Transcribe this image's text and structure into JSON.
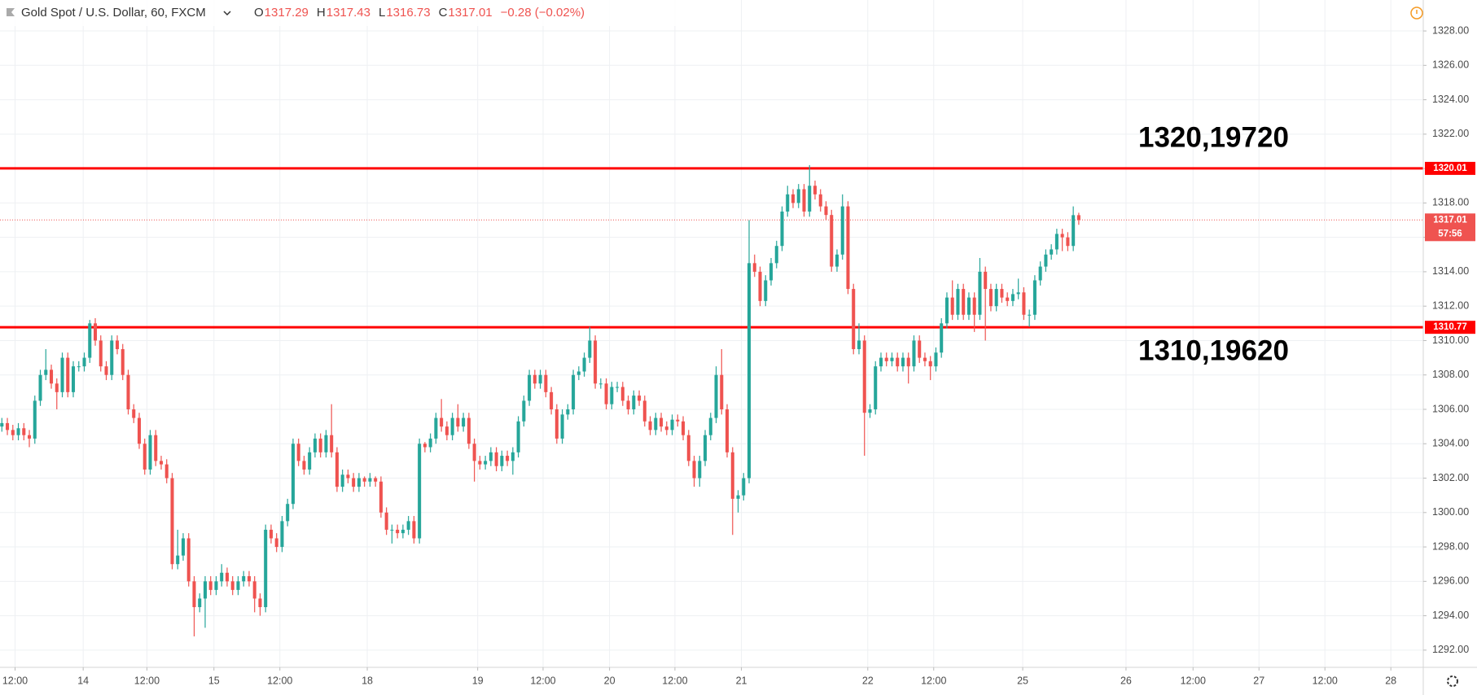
{
  "header": {
    "symbol": "Gold Spot / U.S. Dollar, 60, FXCM",
    "ohlc": [
      {
        "key": "O",
        "value": "1317.29"
      },
      {
        "key": "H",
        "value": "1317.43"
      },
      {
        "key": "L",
        "value": "1316.73"
      },
      {
        "key": "C",
        "value": "1317.01"
      }
    ],
    "change": "−0.28 (−0.02%)"
  },
  "chart_data": {
    "type": "candlestick",
    "up_color": "#26a69a",
    "down_color": "#ef5350",
    "grid": true,
    "x": [
      0,
      1,
      2,
      3,
      4,
      5,
      6,
      7,
      8,
      9,
      10,
      11,
      12,
      13,
      14,
      15,
      16,
      17,
      18,
      19,
      20,
      21,
      22,
      23,
      24,
      25,
      26,
      27,
      28,
      29,
      30,
      31,
      32,
      33,
      34,
      35,
      36,
      37,
      38,
      39,
      40,
      41,
      42,
      43,
      44,
      45,
      46,
      47,
      48,
      49,
      50,
      51,
      52,
      53,
      54,
      55,
      56,
      57,
      58,
      59,
      60,
      61,
      62,
      63,
      64,
      65,
      66,
      67,
      68,
      69,
      70,
      71,
      72,
      73,
      74,
      75,
      76,
      77,
      78,
      79,
      80,
      81,
      82,
      83,
      84,
      85,
      86,
      87,
      88,
      89,
      90,
      91,
      92,
      93,
      94,
      95,
      96,
      97,
      98,
      99,
      100,
      101,
      102,
      103,
      104,
      105,
      106,
      107,
      108,
      109,
      110,
      111,
      112,
      113,
      114,
      115,
      116,
      117,
      118,
      119,
      120,
      121,
      122,
      123,
      124,
      125,
      126,
      127,
      128,
      129,
      130,
      131,
      132,
      133,
      134,
      135,
      136,
      137,
      138,
      139,
      140,
      141,
      142,
      143,
      144,
      145,
      146,
      147,
      148,
      149,
      150,
      151,
      152,
      153,
      154,
      155,
      156,
      157,
      158,
      159,
      160,
      161,
      162,
      163,
      164,
      165,
      166,
      167,
      168,
      169,
      170,
      171,
      172,
      173,
      174,
      175,
      176,
      177,
      178,
      179,
      180,
      181,
      182,
      183,
      184,
      185,
      186,
      187,
      188,
      189,
      190,
      191,
      192,
      193,
      194,
      195,
      196
    ],
    "open": [
      1305,
      1305.2,
      1304.8,
      1304.5,
      1304.9,
      1304.5,
      1304.3,
      1306.5,
      1308,
      1308.3,
      1307.5,
      1307,
      1309,
      1307,
      1308.5,
      1308.5,
      1309,
      1311,
      1310,
      1308.5,
      1308,
      1310,
      1309.5,
      1308,
      1306,
      1305.5,
      1304,
      1302.5,
      1304.5,
      1303,
      1302.8,
      1302,
      1297,
      1297.5,
      1298.5,
      1296,
      1294.5,
      1295,
      1296,
      1295.5,
      1296,
      1296.5,
      1296,
      1295.5,
      1296,
      1296.3,
      1296,
      1295,
      1294.5,
      1299,
      1298.5,
      1298,
      1299.5,
      1300.5,
      1304,
      1303,
      1302.5,
      1303.5,
      1304.3,
      1303.5,
      1304.5,
      1303.5,
      1301.5,
      1302.2,
      1302,
      1301.5,
      1302,
      1301.8,
      1302,
      1301.8,
      1300,
      1299,
      1299,
      1298.8,
      1299,
      1299.5,
      1298.5,
      1304,
      1303.8,
      1304.3,
      1305.5,
      1305,
      1304.5,
      1305.5,
      1305,
      1305.5,
      1304,
      1303,
      1302.8,
      1303,
      1303.5,
      1302.7,
      1303.3,
      1303,
      1303.5,
      1305.3,
      1306.5,
      1308,
      1307.5,
      1308,
      1307,
      1306,
      1304.3,
      1305.7,
      1306,
      1308,
      1308.2,
      1309,
      1310,
      1307.5,
      1307.5,
      1306.3,
      1307.3,
      1307.3,
      1306.5,
      1306,
      1306.8,
      1306.5,
      1305.3,
      1304.8,
      1305.5,
      1305,
      1304.8,
      1305.4,
      1305.3,
      1304.5,
      1303,
      1302,
      1303,
      1304.5,
      1305.5,
      1308,
      1306,
      1303.5,
      1300.8,
      1301,
      1302,
      1314.5,
      1314,
      1312.3,
      1313.5,
      1314.5,
      1315.5,
      1317.5,
      1318.5,
      1318,
      1318.8,
      1317.5,
      1319,
      1318.5,
      1317.8,
      1317.3,
      1314.3,
      1315,
      1317.8,
      1313,
      1309.5,
      1310,
      1305.8,
      1306,
      1308.5,
      1309,
      1308.8,
      1309,
      1308.5,
      1309,
      1308.5,
      1310,
      1309,
      1308.8,
      1308.5,
      1309.3,
      1311,
      1312.5,
      1311.5,
      1313,
      1311.5,
      1312.5,
      1311.5,
      1314,
      1313,
      1312,
      1313,
      1312.5,
      1312.3,
      1312.7,
      1312.8,
      1311.5,
      1311.5,
      1313.5,
      1314.3,
      1315,
      1315.3,
      1316.2,
      1316,
      1315.5,
      1317.29
    ],
    "high": [
      1305.5,
      1305.5,
      1305.1,
      1305.2,
      1305.2,
      1304.8,
      1306.8,
      1308.3,
      1309.5,
      1308.6,
      1307.8,
      1309.3,
      1309.3,
      1308.8,
      1308.8,
      1309.3,
      1311.2,
      1311.3,
      1310.3,
      1308.8,
      1310.3,
      1310.3,
      1309.8,
      1308.3,
      1306.3,
      1305.8,
      1304.3,
      1304.8,
      1304.8,
      1303.3,
      1303.1,
      1302.3,
      1299,
      1298.8,
      1298.8,
      1296.3,
      1295.3,
      1296.3,
      1296.3,
      1296.3,
      1297,
      1296.8,
      1296.3,
      1296.3,
      1296.6,
      1296.6,
      1296.3,
      1295.3,
      1299.3,
      1299.3,
      1298.8,
      1299.8,
      1300.8,
      1304.3,
      1304.3,
      1303.3,
      1303.8,
      1304.6,
      1304.6,
      1304.8,
      1306.3,
      1303.8,
      1302.5,
      1302.5,
      1302.3,
      1302.3,
      1302.1,
      1302.3,
      1302.1,
      1302.1,
      1300.3,
      1299.3,
      1299.3,
      1299.3,
      1299.8,
      1299.8,
      1304.3,
      1304.1,
      1304.6,
      1305.8,
      1306.6,
      1305.3,
      1305.8,
      1306.3,
      1305.8,
      1305.8,
      1304.3,
      1303.3,
      1303.3,
      1303.8,
      1303.8,
      1303.6,
      1303.6,
      1303.8,
      1305.6,
      1306.8,
      1308.3,
      1308.3,
      1308.3,
      1308.3,
      1307.3,
      1306.3,
      1306,
      1306.3,
      1308.3,
      1308.5,
      1309.3,
      1310.8,
      1310.3,
      1307.8,
      1307.8,
      1307.6,
      1307.6,
      1307.6,
      1306.8,
      1307.1,
      1307.1,
      1306.8,
      1305.6,
      1305.8,
      1305.8,
      1305.3,
      1305.7,
      1305.7,
      1305.6,
      1304.8,
      1303.3,
      1303.3,
      1304.8,
      1305.8,
      1308.5,
      1309.5,
      1306.3,
      1303.8,
      1301.3,
      1302.3,
      1317,
      1315,
      1314.3,
      1313.8,
      1314.8,
      1315.8,
      1317.8,
      1319,
      1318.8,
      1319.1,
      1319.1,
      1320.2,
      1319.3,
      1318.8,
      1318.1,
      1317.6,
      1315.3,
      1318.5,
      1318.1,
      1313.3,
      1311,
      1310.3,
      1306.3,
      1308.8,
      1309.3,
      1309.3,
      1309.3,
      1309.3,
      1309.3,
      1309.3,
      1310.3,
      1310.3,
      1309.3,
      1309.1,
      1309.6,
      1311.3,
      1312.8,
      1313.5,
      1313.3,
      1313.3,
      1312.8,
      1312.8,
      1314.8,
      1314.3,
      1313.3,
      1313.3,
      1313.3,
      1312.8,
      1313,
      1313.6,
      1313.1,
      1311.8,
      1313.8,
      1314.6,
      1315.3,
      1315.6,
      1316.5,
      1316.5,
      1316.3,
      1317.8,
      1317.43
    ],
    "low": [
      1304.7,
      1304.5,
      1304.2,
      1304.2,
      1304.2,
      1303.8,
      1304,
      1306.2,
      1307.7,
      1307.2,
      1306,
      1306.7,
      1306.7,
      1306.7,
      1308.2,
      1308.2,
      1308.7,
      1309.7,
      1308.2,
      1307.7,
      1307.7,
      1309.2,
      1307.7,
      1305.7,
      1305.2,
      1303.7,
      1302.2,
      1302.2,
      1302.7,
      1302.5,
      1301.7,
      1296.7,
      1296.7,
      1297.2,
      1295.7,
      1292.8,
      1294.2,
      1293.3,
      1295.2,
      1295.2,
      1295.7,
      1295.7,
      1295.2,
      1295.2,
      1295.7,
      1295.7,
      1294.2,
      1294,
      1294.2,
      1298.2,
      1297.7,
      1297.7,
      1299.2,
      1300.2,
      1302.7,
      1302.2,
      1302.2,
      1303.2,
      1303.2,
      1303.2,
      1303.2,
      1301.2,
      1301.2,
      1301.7,
      1301.2,
      1301.2,
      1301.5,
      1301.5,
      1301.5,
      1299.7,
      1298.7,
      1298.2,
      1298.5,
      1298.5,
      1298.7,
      1298.2,
      1298.2,
      1303.5,
      1303.5,
      1304,
      1304.7,
      1304.2,
      1304.2,
      1304.7,
      1304.7,
      1303.7,
      1301.8,
      1302.5,
      1302.5,
      1302.7,
      1302.4,
      1302.4,
      1302.7,
      1302.2,
      1303.2,
      1305,
      1306.2,
      1307.2,
      1307.2,
      1306.7,
      1305.7,
      1304,
      1304,
      1305.4,
      1305.7,
      1307.7,
      1307.9,
      1308.7,
      1307.2,
      1307.2,
      1306,
      1306,
      1307,
      1306.2,
      1305.7,
      1305.7,
      1306.2,
      1305,
      1304.5,
      1304.5,
      1304.7,
      1304.5,
      1304.5,
      1305,
      1304.2,
      1302.7,
      1301.5,
      1301.5,
      1302.7,
      1304.2,
      1305.2,
      1305.7,
      1303.2,
      1298.7,
      1300,
      1300.7,
      1301.7,
      1313.7,
      1312,
      1312,
      1313.2,
      1314.2,
      1315.2,
      1317.2,
      1317.7,
      1317.7,
      1317.2,
      1317.2,
      1318.2,
      1317.5,
      1317,
      1314,
      1314,
      1314.7,
      1312.7,
      1309.2,
      1309.2,
      1303.3,
      1305.5,
      1305.7,
      1308.2,
      1308.5,
      1308.5,
      1308.2,
      1308.2,
      1307.5,
      1308.2,
      1308.7,
      1308.5,
      1307.7,
      1308.2,
      1309,
      1310.7,
      1311.2,
      1311.2,
      1311.2,
      1311.2,
      1310.5,
      1311.2,
      1310,
      1311.7,
      1311.7,
      1312.2,
      1312,
      1312,
      1312.4,
      1311.2,
      1310.8,
      1311.2,
      1313.2,
      1314,
      1314.7,
      1315,
      1315.2,
      1315.2,
      1315.2,
      1316.73
    ],
    "close": [
      1305.2,
      1304.8,
      1304.5,
      1304.9,
      1304.5,
      1304.3,
      1306.5,
      1308,
      1308.3,
      1307.5,
      1307,
      1309,
      1307,
      1308.5,
      1308.5,
      1309,
      1311,
      1310,
      1308.5,
      1308,
      1310,
      1309.5,
      1308,
      1306,
      1305.5,
      1304,
      1302.5,
      1304.5,
      1303,
      1302.8,
      1302,
      1297,
      1297.5,
      1298.5,
      1296,
      1294.5,
      1295,
      1296,
      1295.5,
      1296,
      1296.5,
      1296,
      1295.5,
      1296,
      1296.3,
      1296,
      1295,
      1294.5,
      1299,
      1298.5,
      1298,
      1299.5,
      1300.5,
      1304,
      1303,
      1302.5,
      1303.5,
      1304.3,
      1303.5,
      1304.5,
      1303.5,
      1301.5,
      1302.2,
      1302,
      1301.5,
      1302,
      1301.8,
      1302,
      1301.8,
      1300,
      1299,
      1299,
      1298.8,
      1299,
      1299.5,
      1298.5,
      1304,
      1303.8,
      1304.3,
      1305.5,
      1305,
      1304.5,
      1305.5,
      1305,
      1305.5,
      1304,
      1303,
      1302.8,
      1303,
      1303.5,
      1302.7,
      1303.3,
      1303,
      1303.5,
      1305.3,
      1306.5,
      1308,
      1307.5,
      1308,
      1307,
      1306,
      1304.3,
      1305.7,
      1306,
      1308,
      1308.2,
      1309,
      1310,
      1307.5,
      1307.5,
      1306.3,
      1307.3,
      1307.3,
      1306.5,
      1306,
      1306.8,
      1306.5,
      1305.3,
      1304.8,
      1305.5,
      1305,
      1304.8,
      1305.4,
      1305.3,
      1304.5,
      1303,
      1302,
      1303,
      1304.5,
      1305.5,
      1308,
      1306,
      1303.5,
      1300.8,
      1301,
      1302,
      1314.5,
      1314,
      1312.3,
      1313.5,
      1314.5,
      1315.5,
      1317.5,
      1318.5,
      1318,
      1318.8,
      1317.5,
      1319,
      1318.5,
      1317.8,
      1317.3,
      1314.3,
      1315,
      1317.8,
      1313,
      1309.5,
      1310,
      1305.8,
      1306,
      1308.5,
      1309,
      1308.8,
      1309,
      1308.5,
      1309,
      1308.5,
      1310,
      1309,
      1308.8,
      1308.5,
      1309.3,
      1311,
      1312.5,
      1311.5,
      1313,
      1311.5,
      1312.5,
      1311.5,
      1314,
      1313,
      1312,
      1313,
      1312.5,
      1312.3,
      1312.7,
      1312.8,
      1311.5,
      1311.5,
      1313.5,
      1314.3,
      1315,
      1315.3,
      1316.2,
      1316,
      1315.5,
      1317.29,
      1317.01
    ],
    "xlim": [
      -0.34,
      258.7
    ],
    "xticks": [
      {
        "value": 2.4,
        "label": "12:00"
      },
      {
        "value": 14.8,
        "label": "14"
      },
      {
        "value": 26.4,
        "label": "12:00"
      },
      {
        "value": 38.6,
        "label": "15"
      },
      {
        "value": 50.6,
        "label": "12:00"
      },
      {
        "value": 66.5,
        "label": "18"
      },
      {
        "value": 86.6,
        "label": "19"
      },
      {
        "value": 98.5,
        "label": "12:00"
      },
      {
        "value": 110.6,
        "label": "20"
      },
      {
        "value": 122.5,
        "label": "12:00"
      },
      {
        "value": 134.6,
        "label": "21"
      },
      {
        "value": 157.6,
        "label": "22"
      },
      {
        "value": 169.6,
        "label": "12:00"
      },
      {
        "value": 185.8,
        "label": "25"
      },
      {
        "value": 204.6,
        "label": "26"
      },
      {
        "value": 216.8,
        "label": "12:00"
      },
      {
        "value": 228.8,
        "label": "27"
      },
      {
        "value": 240.8,
        "label": "12:00"
      },
      {
        "value": 252.8,
        "label": "28"
      }
    ],
    "ylim": [
      1291.0,
      1329.8
    ],
    "yticks": [
      {
        "value": 1292,
        "label": "1292.00"
      },
      {
        "value": 1294,
        "label": "1294.00"
      },
      {
        "value": 1296,
        "label": "1296.00"
      },
      {
        "value": 1298,
        "label": "1298.00"
      },
      {
        "value": 1300,
        "label": "1300.00"
      },
      {
        "value": 1302,
        "label": "1302.00"
      },
      {
        "value": 1304,
        "label": "1304.00"
      },
      {
        "value": 1306,
        "label": "1306.00"
      },
      {
        "value": 1308,
        "label": "1308.00"
      },
      {
        "value": 1310,
        "label": "1310.00"
      },
      {
        "value": 1312,
        "label": "1312.00"
      },
      {
        "value": 1314,
        "label": "1314.00"
      },
      {
        "value": 1316,
        "label": "1316.00"
      },
      {
        "value": 1318,
        "label": "1318.00"
      },
      {
        "value": 1320,
        "label": "1320.00"
      },
      {
        "value": 1322,
        "label": "1322.00"
      },
      {
        "value": 1324,
        "label": "1324.00"
      },
      {
        "value": 1326,
        "label": "1326.00"
      },
      {
        "value": 1328,
        "label": "1328.00"
      }
    ],
    "levels": [
      {
        "value": 1320.01,
        "label": "1320.01",
        "color": "#ff0000"
      },
      {
        "value": 1310.77,
        "label": "1310.77",
        "color": "#ff0000"
      }
    ],
    "last_price": {
      "value": 1317.01,
      "label": "1317.01",
      "countdown": "57:56",
      "color": "#ef5350"
    },
    "annotations": [
      "1320,19720",
      "1310,19620"
    ]
  }
}
